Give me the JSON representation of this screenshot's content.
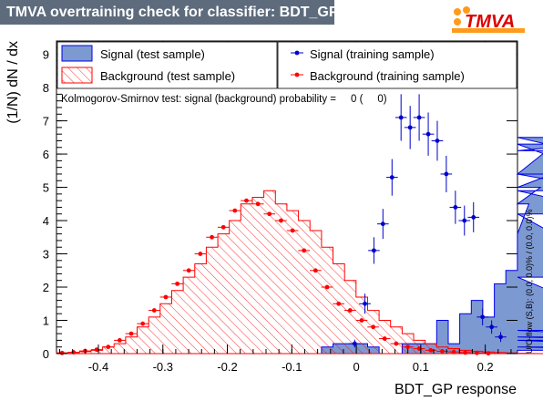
{
  "title": "TMVA overtraining check for classifier: BDT_GP",
  "logo_text": "TMVA",
  "colors": {
    "title_bg": "#5d6b7d",
    "signal_fill": "#7d99d1",
    "signal_line": "#0000ee",
    "background_line": "#ff0000",
    "signal_marker": "#0000cc",
    "background_marker": "#ff0000",
    "logo_orange": "#ff9a1a",
    "logo_red": "#dd0000"
  },
  "legend": {
    "signal_test": "Signal (test sample)",
    "background_test": "Background (test sample)",
    "signal_train": "Signal (training sample)",
    "background_train": "Background (training sample)"
  },
  "ks_text": "Kolmogorov-Smirnov test: signal (background) probability =     0 (     0)",
  "side_text": "U/O-flow (S,B): (0.0, 0.0)% / (0.0, 0.0)%",
  "chart_data": {
    "type": "histogram",
    "xlabel": "BDT_GP response",
    "ylabel": "(1/N)  dN / dx",
    "xlim": [
      -0.465,
      0.25
    ],
    "ylim": [
      0,
      9.4
    ],
    "x_ticks": [
      -0.4,
      -0.3,
      -0.2,
      -0.1,
      0,
      0.1,
      0.2
    ],
    "x_tick_labels": [
      "-0.4",
      "-0.3",
      "-0.2",
      "-0.1",
      "0",
      "0.1",
      "0.2"
    ],
    "y_ticks": [
      0,
      1,
      2,
      3,
      4,
      5,
      6,
      7,
      8,
      9
    ],
    "y_tick_labels": [
      "0",
      "1",
      "2",
      "3",
      "4",
      "5",
      "6",
      "7",
      "8",
      "9"
    ],
    "bin_width": 0.01787,
    "bin_edges_first": -0.465,
    "signal_test": [
      0,
      0,
      0,
      0,
      0,
      0,
      0,
      0,
      0,
      0,
      0,
      0,
      0,
      0,
      0,
      0,
      0,
      0,
      0,
      0,
      0,
      0,
      0,
      0.2,
      0.3,
      0.3,
      0.3,
      0.2,
      0,
      0,
      0.3,
      0.3,
      0.3,
      1.0,
      0.3,
      1.2,
      1.6,
      1.1,
      2.1,
      2.5,
      3.6,
      4.5,
      5.0,
      5.4,
      6.5,
      6.1,
      6.3,
      5.4,
      4.9,
      4.2,
      2.3,
      0.7,
      0.5,
      0.4,
      0.2,
      0.1,
      0.1,
      0.1,
      0.1,
      0.1
    ],
    "background_test": [
      0.02,
      0.03,
      0.06,
      0.1,
      0.2,
      0.3,
      0.5,
      0.8,
      1.1,
      1.5,
      1.9,
      2.3,
      2.7,
      3.2,
      3.6,
      4.0,
      4.5,
      4.7,
      4.9,
      4.5,
      4.3,
      4.0,
      3.7,
      3.2,
      2.7,
      2.2,
      1.7,
      1.3,
      1.0,
      0.8,
      0.6,
      0.4,
      0.3,
      0.2,
      0.15,
      0.1,
      0.07,
      0.05,
      0.03,
      0.02,
      0.01,
      0.01,
      0,
      0,
      0,
      0,
      0,
      0,
      0,
      0,
      0,
      0,
      0,
      0,
      0,
      0,
      0,
      0,
      0,
      0
    ],
    "signal_train_x": [
      -0.0025,
      0.0134,
      0.0273,
      0.0413,
      0.0554,
      0.0694,
      0.0835,
      0.0975,
      0.1116,
      0.1256,
      0.1396,
      0.1537,
      0.1677,
      0.1818,
      0.1958,
      0.2099,
      0.2239
    ],
    "signal_train_y": [
      0.3,
      1.5,
      3.1,
      3.9,
      5.3,
      7.1,
      6.8,
      7.1,
      6.6,
      6.4,
      5.4,
      4.4,
      4.0,
      4.1,
      1.1,
      0.8,
      0.5
    ],
    "signal_train_err": [
      0.12,
      0.3,
      0.4,
      0.45,
      0.55,
      0.7,
      0.65,
      0.7,
      0.65,
      0.6,
      0.55,
      0.5,
      0.45,
      0.45,
      0.25,
      0.2,
      0.15
    ],
    "background_train_x": [
      -0.4563,
      -0.4385,
      -0.4206,
      -0.4027,
      -0.3848,
      -0.367,
      -0.3491,
      -0.3312,
      -0.3134,
      -0.2955,
      -0.2776,
      -0.2598,
      -0.2419,
      -0.224,
      -0.2061,
      -0.1883,
      -0.1704,
      -0.1525,
      -0.1347,
      -0.1168,
      -0.0989,
      -0.0811,
      -0.0632,
      -0.0453,
      -0.0274,
      -0.0096,
      0.0083,
      0.0262,
      0.044,
      0.0619,
      0.0798,
      0.0976,
      0.1155,
      0.1334,
      0.1512,
      0.1691,
      0.187,
      0.2048
    ],
    "background_train_y": [
      0.02,
      0.04,
      0.08,
      0.12,
      0.2,
      0.4,
      0.6,
      0.9,
      1.3,
      1.7,
      2.1,
      2.5,
      3.0,
      3.5,
      3.8,
      4.3,
      4.6,
      4.5,
      4.2,
      4.0,
      3.7,
      3.1,
      2.5,
      2.0,
      1.5,
      1.3,
      1.0,
      0.8,
      0.45,
      0.3,
      0.2,
      0.15,
      0.1,
      0.07,
      0.05,
      0.03,
      0.02,
      0.01
    ]
  }
}
